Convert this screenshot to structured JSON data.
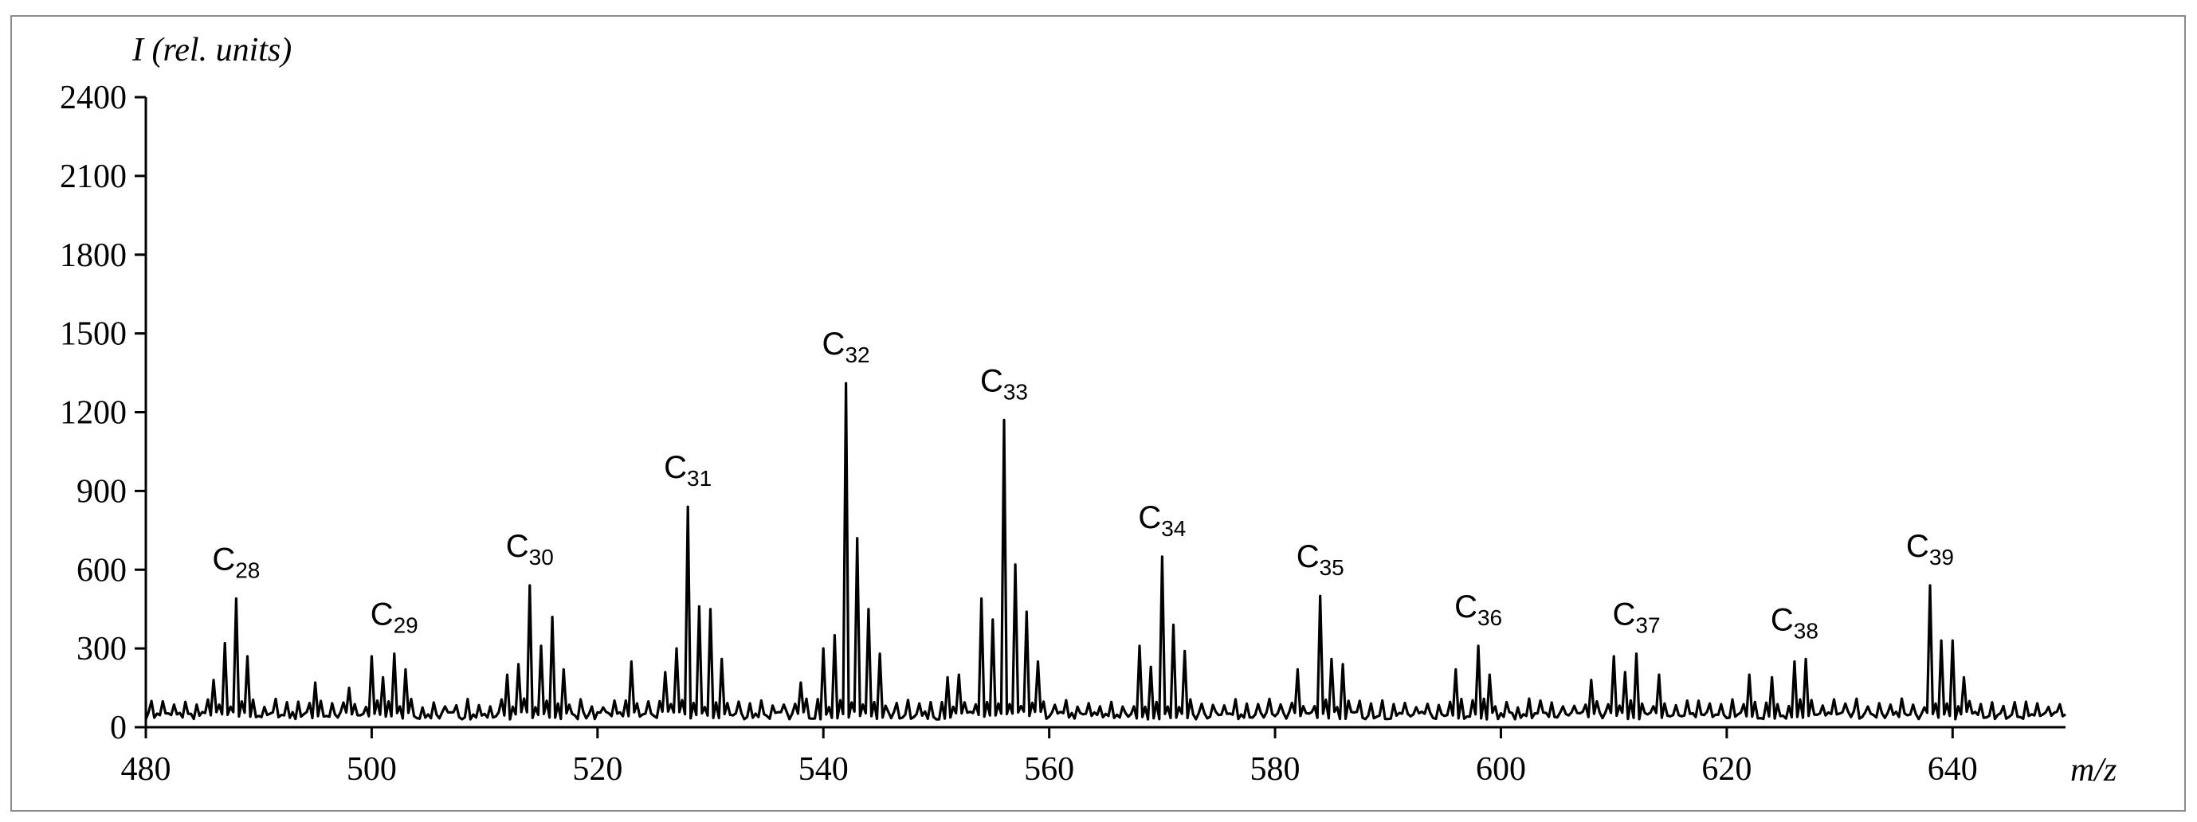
{
  "chart_data": {
    "type": "line",
    "title": "",
    "xlabel": "m/z",
    "ylabel": "I (rel. units)",
    "xlim": [
      480,
      650
    ],
    "ylim": [
      0,
      2400
    ],
    "grid": false,
    "x_ticks": [
      "480",
      "500",
      "520",
      "540",
      "560",
      "580",
      "600",
      "620",
      "640"
    ],
    "y_ticks": [
      "0",
      "300",
      "600",
      "900",
      "1200",
      "1500",
      "1800",
      "2100",
      "2400"
    ],
    "baseline": [
      30,
      110
    ],
    "peaks": [
      {
        "x": 486,
        "y": 180
      },
      {
        "x": 487,
        "y": 320
      },
      {
        "x": 488,
        "y": 490
      },
      {
        "x": 489,
        "y": 270
      },
      {
        "x": 495,
        "y": 170
      },
      {
        "x": 498,
        "y": 150
      },
      {
        "x": 500,
        "y": 270
      },
      {
        "x": 501,
        "y": 190
      },
      {
        "x": 502,
        "y": 280
      },
      {
        "x": 503,
        "y": 220
      },
      {
        "x": 512,
        "y": 200
      },
      {
        "x": 513,
        "y": 240
      },
      {
        "x": 514,
        "y": 540
      },
      {
        "x": 515,
        "y": 310
      },
      {
        "x": 516,
        "y": 420
      },
      {
        "x": 517,
        "y": 220
      },
      {
        "x": 523,
        "y": 250
      },
      {
        "x": 526,
        "y": 210
      },
      {
        "x": 527,
        "y": 300
      },
      {
        "x": 528,
        "y": 840
      },
      {
        "x": 529,
        "y": 460
      },
      {
        "x": 530,
        "y": 450
      },
      {
        "x": 531,
        "y": 260
      },
      {
        "x": 538,
        "y": 170
      },
      {
        "x": 540,
        "y": 300
      },
      {
        "x": 541,
        "y": 350
      },
      {
        "x": 542,
        "y": 1310
      },
      {
        "x": 543,
        "y": 720
      },
      {
        "x": 544,
        "y": 450
      },
      {
        "x": 545,
        "y": 280
      },
      {
        "x": 551,
        "y": 190
      },
      {
        "x": 552,
        "y": 200
      },
      {
        "x": 554,
        "y": 490
      },
      {
        "x": 555,
        "y": 410
      },
      {
        "x": 556,
        "y": 1170
      },
      {
        "x": 557,
        "y": 620
      },
      {
        "x": 558,
        "y": 440
      },
      {
        "x": 559,
        "y": 250
      },
      {
        "x": 568,
        "y": 310
      },
      {
        "x": 569,
        "y": 230
      },
      {
        "x": 570,
        "y": 650
      },
      {
        "x": 571,
        "y": 390
      },
      {
        "x": 572,
        "y": 290
      },
      {
        "x": 582,
        "y": 220
      },
      {
        "x": 584,
        "y": 500
      },
      {
        "x": 585,
        "y": 260
      },
      {
        "x": 586,
        "y": 240
      },
      {
        "x": 596,
        "y": 220
      },
      {
        "x": 598,
        "y": 310
      },
      {
        "x": 599,
        "y": 200
      },
      {
        "x": 608,
        "y": 180
      },
      {
        "x": 610,
        "y": 270
      },
      {
        "x": 611,
        "y": 210
      },
      {
        "x": 612,
        "y": 280
      },
      {
        "x": 614,
        "y": 200
      },
      {
        "x": 622,
        "y": 200
      },
      {
        "x": 624,
        "y": 190
      },
      {
        "x": 626,
        "y": 250
      },
      {
        "x": 627,
        "y": 260
      },
      {
        "x": 638,
        "y": 540
      },
      {
        "x": 639,
        "y": 330
      },
      {
        "x": 640,
        "y": 330
      },
      {
        "x": 641,
        "y": 190
      }
    ],
    "annotations": [
      {
        "base": "C",
        "sub": "28",
        "x": 488,
        "y": 490
      },
      {
        "base": "C",
        "sub": "29",
        "x": 502,
        "y": 280
      },
      {
        "base": "C",
        "sub": "30",
        "x": 514,
        "y": 540
      },
      {
        "base": "C",
        "sub": "31",
        "x": 528,
        "y": 840
      },
      {
        "base": "C",
        "sub": "32",
        "x": 542,
        "y": 1310
      },
      {
        "base": "C",
        "sub": "33",
        "x": 556,
        "y": 1170
      },
      {
        "base": "C",
        "sub": "34",
        "x": 570,
        "y": 650
      },
      {
        "base": "C",
        "sub": "35",
        "x": 584,
        "y": 500
      },
      {
        "base": "C",
        "sub": "36",
        "x": 598,
        "y": 310
      },
      {
        "base": "C",
        "sub": "37",
        "x": 612,
        "y": 280
      },
      {
        "base": "C",
        "sub": "38",
        "x": 626,
        "y": 260
      },
      {
        "base": "C",
        "sub": "39",
        "x": 638,
        "y": 540
      }
    ]
  }
}
